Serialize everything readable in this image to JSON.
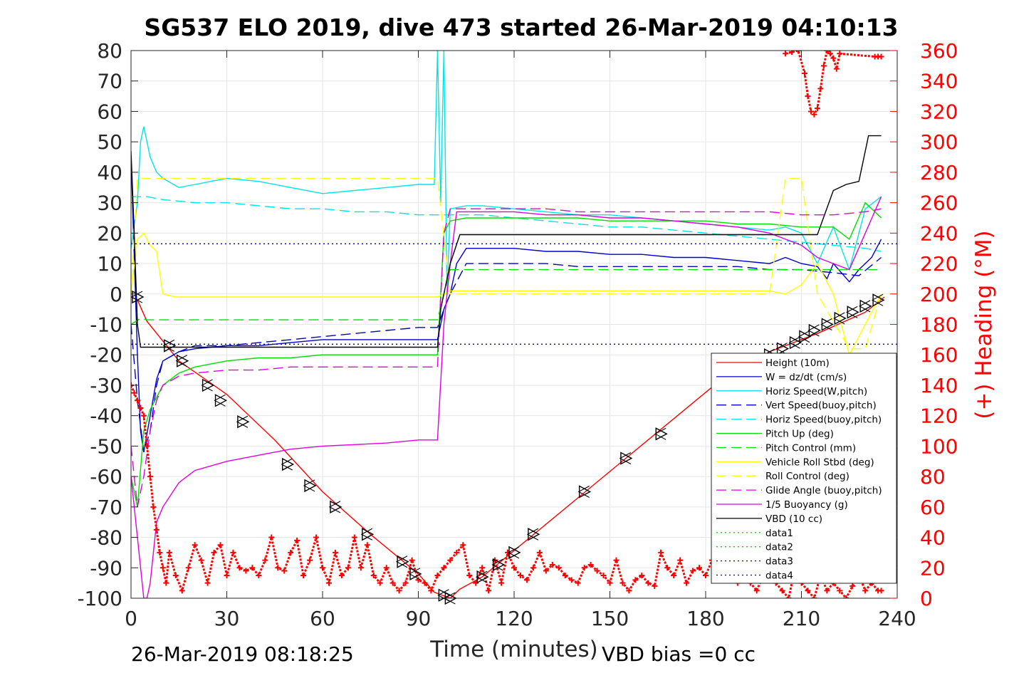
{
  "title": "SG537 ELO 2019, dive 473 started 26-Mar-2019 04:10:13",
  "footer_left": "26-Mar-2019 08:18:25",
  "footer_right": "VBD bias =0 cc",
  "chart_data": {
    "type": "line",
    "xlabel": "Time (minutes)",
    "ylabel": "",
    "y2label": "(+) Heading (°M)",
    "xlim": [
      0,
      240
    ],
    "ylim": [
      -100,
      80
    ],
    "y2lim": [
      0,
      360
    ],
    "xticks": [
      0,
      30,
      60,
      90,
      120,
      150,
      180,
      210,
      240
    ],
    "yticks": [
      -100,
      -90,
      -80,
      -70,
      -60,
      -50,
      -40,
      -30,
      -20,
      -10,
      0,
      10,
      20,
      30,
      40,
      50,
      60,
      70,
      80
    ],
    "y2ticks": [
      0,
      20,
      40,
      60,
      80,
      100,
      120,
      140,
      160,
      180,
      200,
      220,
      240,
      260,
      280,
      300,
      320,
      340,
      360
    ],
    "grid": true,
    "legend_position": "bottom-right",
    "colors": {
      "red": "#ff0000",
      "blue": "#0000cc",
      "cyan": "#00e5e5",
      "green": "#00e000",
      "yellow": "#ffff00",
      "magenta": "#e000e0",
      "black": "#000000",
      "navy": "#000080"
    },
    "series": [
      {
        "name": "Height (10m)",
        "color": "red",
        "style": "solid",
        "x": [
          0,
          2,
          5,
          15,
          30,
          45,
          60,
          75,
          90,
          95,
          100,
          103,
          110,
          125,
          140,
          155,
          170,
          185,
          200,
          215,
          230,
          236
        ],
        "y": [
          -1,
          -2,
          -9,
          -22,
          -33,
          -48,
          -65,
          -79,
          -92,
          -98,
          -100,
          -97,
          -93,
          -80,
          -67,
          -54,
          -41,
          -28,
          -19,
          -13,
          -6,
          -1
        ]
      },
      {
        "name": "W = dz/dt (cm/s)",
        "color": "blue",
        "style": "solid",
        "x": [
          0,
          2,
          3,
          4,
          6,
          8,
          10,
          15,
          20,
          30,
          40,
          50,
          60,
          70,
          80,
          90,
          96,
          98,
          100,
          102,
          105,
          110,
          120,
          130,
          140,
          150,
          160,
          170,
          180,
          190,
          200,
          205,
          210,
          215,
          218,
          220,
          225,
          228,
          232,
          235
        ],
        "y": [
          45,
          -20,
          -45,
          -52,
          -40,
          -28,
          -22,
          -19,
          -18,
          -17,
          -17,
          -16,
          -15,
          -15,
          -15,
          -15,
          -15,
          -5,
          0,
          10,
          15,
          15,
          15,
          14,
          14,
          13,
          13,
          12,
          12,
          11,
          10,
          12,
          10,
          9,
          5,
          10,
          4,
          8,
          12,
          18
        ]
      },
      {
        "name": "Horiz Speed(W,pitch)",
        "color": "cyan",
        "style": "solid",
        "x": [
          0,
          2,
          3,
          4,
          6,
          8,
          10,
          15,
          20,
          25,
          30,
          40,
          50,
          60,
          70,
          80,
          90,
          95,
          96,
          97,
          98,
          99,
          100,
          105,
          110,
          120,
          130,
          140,
          150,
          160,
          170,
          180,
          190,
          200,
          205,
          210,
          215,
          220,
          225,
          230,
          235
        ],
        "y": [
          15,
          30,
          50,
          55,
          45,
          40,
          38,
          35,
          36,
          37,
          38,
          37,
          35,
          33,
          34,
          35,
          36,
          36,
          80,
          30,
          80,
          0,
          28,
          29,
          29,
          28,
          27,
          26,
          26,
          25,
          24,
          23,
          22,
          21,
          22,
          20,
          10,
          22,
          8,
          28,
          32
        ]
      },
      {
        "name": "Vert Speed(buoy,pitch)",
        "color": "blue",
        "style": "dashed",
        "x": [
          0,
          2,
          4,
          6,
          8,
          10,
          15,
          20,
          30,
          40,
          50,
          60,
          70,
          80,
          90,
          96,
          98,
          100,
          105,
          110,
          120,
          130,
          140,
          150,
          160,
          170,
          180,
          190,
          200,
          210,
          220,
          228,
          235
        ],
        "y": [
          -10,
          -35,
          -52,
          -45,
          -30,
          -22,
          -19,
          -17,
          -17,
          -16,
          -15,
          -14,
          -13,
          -12,
          -11,
          -11,
          -5,
          0,
          10,
          10,
          10,
          10,
          9,
          9,
          9,
          9,
          9,
          9,
          8,
          8,
          7,
          6,
          12
        ]
      },
      {
        "name": "Horiz Speed(buoy,pitch)",
        "color": "cyan",
        "style": "dashed",
        "x": [
          0,
          5,
          10,
          20,
          30,
          40,
          50,
          60,
          70,
          80,
          90,
          96,
          100,
          110,
          120,
          130,
          140,
          150,
          160,
          170,
          180,
          190,
          200,
          210,
          220,
          230,
          235
        ],
        "y": [
          32,
          32,
          31,
          30,
          30,
          29,
          28,
          28,
          27,
          27,
          26,
          26,
          26,
          26,
          25,
          24,
          23,
          22,
          22,
          21,
          20,
          19,
          18,
          17,
          16,
          15,
          14
        ]
      },
      {
        "name": "Pitch Up (deg)",
        "color": "green",
        "style": "solid",
        "x": [
          0,
          2,
          4,
          6,
          8,
          10,
          15,
          20,
          30,
          40,
          50,
          60,
          70,
          80,
          90,
          96,
          98,
          100,
          105,
          110,
          120,
          130,
          140,
          150,
          160,
          170,
          180,
          190,
          200,
          210,
          220,
          225,
          230,
          235
        ],
        "y": [
          -60,
          -70,
          -45,
          -38,
          -34,
          -30,
          -26,
          -24,
          -22,
          -21,
          -21,
          -20,
          -20,
          -20,
          -20,
          -20,
          20,
          24,
          25,
          25,
          25,
          25,
          25,
          24,
          24,
          24,
          24,
          23,
          23,
          22,
          22,
          18,
          30,
          25
        ]
      },
      {
        "name": "Pitch Control (mm)",
        "color": "green",
        "style": "dashed",
        "x": [
          0,
          3,
          5,
          96,
          98,
          100,
          150,
          200,
          230,
          235
        ],
        "y": [
          -10,
          -8,
          -8.5,
          -8.5,
          0,
          8,
          8,
          8,
          8,
          8
        ]
      },
      {
        "name": "Vehicle Roll Stbd (deg)",
        "color": "yellow",
        "style": "solid",
        "x": [
          0,
          2,
          4,
          6,
          8,
          10,
          14,
          20,
          30,
          40,
          50,
          60,
          70,
          80,
          90,
          96,
          98,
          100,
          110,
          120,
          130,
          140,
          150,
          160,
          170,
          180,
          190,
          200,
          205,
          210,
          215,
          220,
          225,
          230,
          235
        ],
        "y": [
          0,
          18,
          20,
          16,
          14,
          0,
          -1,
          -1,
          -1,
          -1,
          -1,
          -1,
          -1,
          -1,
          -1,
          -1,
          0,
          1,
          1,
          1,
          1,
          1,
          1,
          1,
          1,
          1,
          1,
          1,
          0,
          3,
          10,
          0,
          -20,
          -10,
          0
        ]
      },
      {
        "name": "Roll Control (deg)",
        "color": "yellow",
        "style": "dashed",
        "x": [
          0,
          2,
          5,
          10,
          30,
          60,
          90,
          96,
          100,
          130,
          160,
          190,
          200,
          205,
          210,
          215,
          225,
          230,
          235
        ],
        "y": [
          0,
          38,
          38,
          38,
          38,
          38,
          38,
          38,
          0,
          0,
          0,
          0,
          0,
          38,
          38,
          0,
          -18,
          -18,
          0
        ]
      },
      {
        "name": "Glide Angle (buoy,pitch)",
        "color": "magenta",
        "style": "dashed",
        "x": [
          0,
          2,
          4,
          6,
          8,
          10,
          15,
          20,
          30,
          40,
          50,
          60,
          70,
          80,
          90,
          96,
          98,
          100,
          110,
          120,
          130,
          140,
          150,
          160,
          170,
          180,
          190,
          200,
          210,
          220,
          230,
          235
        ],
        "y": [
          -50,
          -70,
          -60,
          -45,
          -35,
          -30,
          -27,
          -26,
          -25,
          -25,
          -24,
          -24,
          -24,
          -24,
          -24,
          -24,
          20,
          28,
          28,
          28,
          28,
          27,
          27,
          27,
          27,
          27,
          27,
          27,
          26,
          26,
          27,
          28
        ]
      },
      {
        "name": "1/5 Buoyancy (g)",
        "color": "magenta",
        "style": "solid",
        "x": [
          0,
          2,
          4,
          5,
          6,
          8,
          10,
          15,
          20,
          30,
          40,
          50,
          60,
          70,
          80,
          90,
          96,
          98,
          100,
          102,
          110,
          120,
          130,
          140,
          150,
          160,
          170,
          180,
          190,
          200,
          205,
          210,
          215,
          220,
          225,
          230,
          235
        ],
        "y": [
          -60,
          -80,
          -100,
          -100,
          -95,
          -75,
          -70,
          -62,
          -58,
          -55,
          -53,
          -51,
          -50,
          -49.5,
          -49,
          -48,
          -48,
          -10,
          10,
          27,
          27,
          27,
          26,
          26,
          25,
          25,
          24,
          23,
          22,
          20,
          18,
          16,
          12,
          10,
          8,
          20,
          32
        ]
      },
      {
        "name": "VBD (10 cc)",
        "color": "black",
        "style": "solid",
        "x": [
          0,
          1,
          2,
          3,
          96,
          97,
          100,
          103,
          200,
          205,
          215,
          220,
          224,
          228,
          231,
          235
        ],
        "y": [
          47,
          20,
          -10,
          -17.5,
          -17.5,
          -5,
          10,
          19.5,
          19.5,
          19.5,
          19.5,
          34,
          36,
          37,
          52,
          52
        ]
      },
      {
        "name": "data1",
        "color": "green",
        "style": "dotted",
        "x": [],
        "y": []
      },
      {
        "name": "data2",
        "color": "green",
        "style": "dotted",
        "x": [],
        "y": []
      },
      {
        "name": "data3",
        "color": "navy",
        "style": "dotted",
        "x": [
          0,
          240
        ],
        "y": [
          16.5,
          16.5
        ]
      },
      {
        "name": "data4",
        "color": "navy",
        "style": "dotted",
        "x": [
          0,
          240
        ],
        "y": [
          -16.5,
          -16.5
        ]
      }
    ],
    "heading": {
      "axis": "right",
      "color": "red",
      "marker": "+",
      "x": [
        0,
        1,
        2,
        3,
        4,
        5,
        6,
        7,
        8,
        9,
        10,
        11,
        12,
        14,
        16,
        18,
        20,
        22,
        24,
        26,
        28,
        30,
        32,
        34,
        36,
        38,
        40,
        42,
        44,
        46,
        48,
        50,
        52,
        54,
        56,
        58,
        60,
        62,
        64,
        66,
        68,
        70,
        72,
        74,
        76,
        78,
        80,
        82,
        84,
        86,
        88,
        90,
        92,
        94,
        96,
        98,
        100,
        102,
        104,
        106,
        108,
        110,
        112,
        114,
        116,
        118,
        120,
        122,
        124,
        126,
        128,
        130,
        132,
        134,
        136,
        138,
        140,
        142,
        144,
        146,
        148,
        150,
        152,
        154,
        156,
        158,
        160,
        162,
        164,
        166,
        168,
        170,
        172,
        174,
        176,
        178,
        180,
        182,
        184,
        186,
        188,
        190,
        192,
        194,
        196,
        198,
        200,
        202,
        204,
        206,
        208,
        210,
        212,
        214,
        216,
        218,
        220,
        222,
        224,
        226,
        228,
        230,
        232,
        234,
        235
      ],
      "y": [
        140,
        135,
        130,
        125,
        120,
        100,
        80,
        60,
        45,
        30,
        20,
        10,
        30,
        15,
        5,
        20,
        35,
        25,
        10,
        30,
        35,
        15,
        30,
        20,
        18,
        20,
        15,
        25,
        40,
        20,
        18,
        30,
        38,
        15,
        25,
        40,
        20,
        10,
        30,
        15,
        20,
        40,
        20,
        35,
        15,
        10,
        20,
        10,
        5,
        10,
        25,
        12,
        10,
        5,
        15,
        20,
        25,
        30,
        35,
        15,
        10,
        20,
        5,
        25,
        10,
        30,
        20,
        15,
        12,
        20,
        30,
        18,
        22,
        20,
        15,
        12,
        10,
        20,
        22,
        18,
        15,
        10,
        25,
        10,
        5,
        12,
        15,
        10,
        8,
        30,
        20,
        15,
        25,
        10,
        18,
        20,
        15,
        25,
        30,
        15,
        12,
        10,
        25,
        10,
        5,
        15,
        20,
        10,
        5,
        0,
        20,
        10,
        5,
        0,
        15,
        5,
        10,
        5,
        0,
        8,
        15,
        5,
        10,
        5,
        5
      ],
      "upper_x": [
        205,
        207,
        209,
        211,
        212,
        213,
        214,
        215,
        216,
        217,
        218,
        219,
        220,
        221,
        222,
        233,
        234,
        235
      ],
      "upper_y": [
        358,
        359,
        360,
        345,
        330,
        320,
        318,
        322,
        335,
        350,
        360,
        358,
        355,
        348,
        358,
        356,
        356,
        356
      ]
    },
    "triangles": {
      "x": [
        2,
        12,
        16,
        24,
        28,
        35,
        49,
        56,
        64,
        74,
        85,
        89,
        98,
        100,
        110,
        115,
        120,
        126,
        142,
        155,
        166,
        200,
        204,
        208,
        211,
        214,
        218,
        222,
        226,
        230,
        234
      ],
      "y": [
        -1,
        -17,
        -22,
        -30,
        -35,
        -42,
        -56,
        -63,
        -70,
        -79,
        -88,
        -92,
        -99,
        -100,
        -93,
        -89,
        -85,
        -79,
        -65,
        -54,
        -46,
        -20,
        -18,
        -16,
        -14,
        -12,
        -10,
        -8,
        -6,
        -4,
        -2
      ]
    }
  }
}
